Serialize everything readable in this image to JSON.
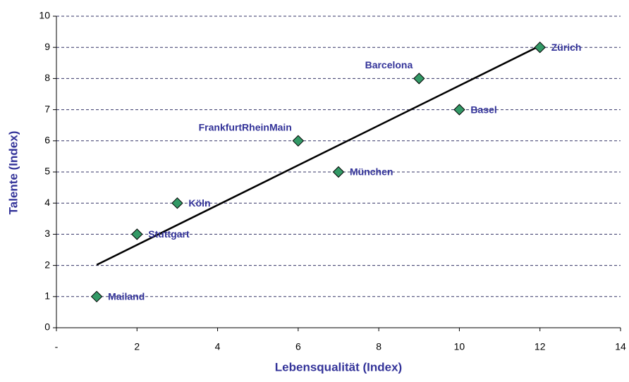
{
  "chart_data": {
    "type": "scatter",
    "x_label": "Lebensqualität (Index)",
    "y_label": "Talente (Index)",
    "labels": [
      "Mailand",
      "Stuttgart",
      "Köln",
      "FrankfurtRheinMain",
      "München",
      "Barcelona",
      "Basel",
      "Zürich"
    ],
    "x": [
      1,
      2,
      3,
      6,
      7,
      9,
      10,
      12
    ],
    "y": [
      1,
      3,
      4,
      6,
      5,
      8,
      7,
      9
    ],
    "color": "#339966",
    "trendline": {
      "x": [
        1,
        12
      ],
      "y": [
        2.02,
        9.05
      ],
      "color": "#000000"
    },
    "xlim": [
      0,
      14
    ],
    "xticks": [
      {
        "value": 0,
        "label": "-"
      },
      2,
      4,
      6,
      8,
      10,
      12,
      14
    ],
    "ylim": [
      0,
      10
    ],
    "yticks": [
      0,
      1,
      2,
      3,
      4,
      5,
      6,
      7,
      8,
      9,
      10
    ],
    "grid": true
  }
}
